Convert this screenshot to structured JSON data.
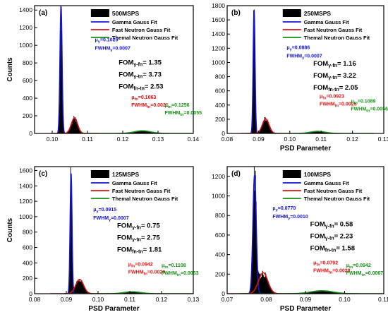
{
  "colors": {
    "histogram": "#000000",
    "gamma_fit": "#1414d8",
    "fast_fit": "#e01010",
    "thermal_fit": "#149014",
    "fom_text": "#000000"
  },
  "legend_labels": [
    "Gamma  Gauss Fit",
    "Fast Neutron Gauss Fit",
    "Themal Neutron Gauss Fit"
  ],
  "chart_data": [
    {
      "id": "a",
      "type": "area",
      "panel_label": "(a)",
      "legend_title": "500MSPS",
      "xlabel": "",
      "ylabel": "Counts",
      "xlim": [
        0.095,
        0.14
      ],
      "ylim": [
        0,
        1450
      ],
      "x_ticks": [
        "0.10",
        "0.11",
        "0.12",
        "0.13",
        "0.14"
      ],
      "x_tick_values": [
        0.1,
        0.11,
        0.12,
        0.13,
        0.14
      ],
      "y_ticks": [
        "0",
        "200",
        "400",
        "600",
        "800",
        "1000",
        "1200",
        "1400"
      ],
      "y_tick_values": [
        0,
        200,
        400,
        600,
        800,
        1000,
        1200,
        1400
      ],
      "peaks": {
        "gamma": {
          "mu": 0.1025,
          "fwhm": 0.0007,
          "height": 1440
        },
        "fast": {
          "mu": 0.1063,
          "fwhm": 0.0021,
          "height": 175
        },
        "thermal": {
          "mu": 0.1256,
          "fwhm": 0.0055,
          "height": 30
        }
      },
      "annotations": {
        "gamma_mu": {
          "sym": "μ",
          "sub": "γ",
          "val": "=0.1025"
        },
        "gamma_fwhm": {
          "sym": "FWHM",
          "sub": "γ",
          "val": "=0.0007"
        },
        "fast_mu": {
          "sym": "μ",
          "sub": "fn",
          "val": "=0.1063"
        },
        "fast_fwhm": {
          "sym": "FWHM",
          "sub": "fn",
          "val": "=0.0021"
        },
        "thermal_mu": {
          "sym": "μ",
          "sub": "tn",
          "val": "=0.1256"
        },
        "thermal_fwhm": {
          "sym": "FWHM",
          "sub": "tn",
          "val": "=0.0055"
        }
      },
      "fom": [
        {
          "sym": "FOM",
          "sub": "γ-fn",
          "val": "= 1.35"
        },
        {
          "sym": "FOM",
          "sub": "γ-tn",
          "val": "= 3.73"
        },
        {
          "sym": "FOM",
          "sub": "fn-tn",
          "val": "= 2.53"
        }
      ]
    },
    {
      "id": "b",
      "type": "area",
      "panel_label": "(b)",
      "legend_title": "250MSPS",
      "xlabel": "PSD Parameter",
      "ylabel": "",
      "xlim": [
        0.08,
        0.13
      ],
      "ylim": [
        0,
        1800
      ],
      "x_ticks": [
        "0.08",
        "0.09",
        "0.10",
        "0.11",
        "0.12",
        "0.13"
      ],
      "x_tick_values": [
        0.08,
        0.09,
        0.1,
        0.11,
        0.12,
        0.13
      ],
      "y_ticks": [
        "0",
        "200",
        "400",
        "600",
        "800",
        "1000",
        "1200",
        "1400",
        "1600",
        "1800"
      ],
      "y_tick_values": [
        0,
        200,
        400,
        600,
        800,
        1000,
        1200,
        1400,
        1600,
        1800
      ],
      "peaks": {
        "gamma": {
          "mu": 0.0886,
          "fwhm": 0.0007,
          "height": 1740
        },
        "fast": {
          "mu": 0.0923,
          "fwhm": 0.0025,
          "height": 205
        },
        "thermal": {
          "mu": 0.1089,
          "fwhm": 0.0056,
          "height": 30
        }
      },
      "annotations": {
        "gamma_mu": {
          "sym": "μ",
          "sub": "γ",
          "val": "=0.0886"
        },
        "gamma_fwhm": {
          "sym": "FWHM",
          "sub": "γ",
          "val": "=0.0007"
        },
        "fast_mu": {
          "sym": "μ",
          "sub": "fn",
          "val": "=0.0923"
        },
        "fast_fwhm": {
          "sym": "FWHM",
          "sub": "fn",
          "val": "=0.0025"
        },
        "thermal_mu": {
          "sym": "μ",
          "sub": "tn",
          "val": "=0.1089"
        },
        "thermal_fwhm": {
          "sym": "FWHM",
          "sub": "tn",
          "val": "=0.0056"
        }
      },
      "fom": [
        {
          "sym": "FOM",
          "sub": "γ-fn",
          "val": "= 1.16"
        },
        {
          "sym": "FOM",
          "sub": "γ-tn",
          "val": "= 3.22"
        },
        {
          "sym": "FOM",
          "sub": "fn-tn",
          "val": "= 2.05"
        }
      ]
    },
    {
      "id": "c",
      "type": "area",
      "panel_label": "(c)",
      "legend_title": "125MSPS",
      "xlabel": "PSD Parameter",
      "ylabel": "Counts",
      "xlim": [
        0.08,
        0.13
      ],
      "ylim": [
        0,
        1650
      ],
      "x_ticks": [
        "0.08",
        "0.09",
        "0.10",
        "0.11",
        "0.12",
        "0.13"
      ],
      "x_tick_values": [
        0.08,
        0.09,
        0.1,
        0.11,
        0.12,
        0.13
      ],
      "y_ticks": [
        "0",
        "200",
        "400",
        "600",
        "800",
        "1000",
        "1200",
        "1400",
        "1600"
      ],
      "y_tick_values": [
        0,
        200,
        400,
        600,
        800,
        1000,
        1200,
        1400,
        1600
      ],
      "peaks": {
        "gamma": {
          "mu": 0.0915,
          "fwhm": 0.0007,
          "height": 1560
        },
        "fast": {
          "mu": 0.0942,
          "fwhm": 0.0029,
          "height": 185
        },
        "thermal": {
          "mu": 0.1108,
          "fwhm": 0.0063,
          "height": 25
        }
      },
      "annotations": {
        "gamma_mu": {
          "sym": "μ",
          "sub": "γ",
          "val": "=0.0915"
        },
        "gamma_fwhm": {
          "sym": "FWHM",
          "sub": "γ",
          "val": "=0.0007"
        },
        "fast_mu": {
          "sym": "μ",
          "sub": "fn",
          "val": "=0.0942"
        },
        "fast_fwhm": {
          "sym": "FWHM",
          "sub": "fn",
          "val": "=0.0029"
        },
        "thermal_mu": {
          "sym": "μ",
          "sub": "tn",
          "val": "=0.1108"
        },
        "thermal_fwhm": {
          "sym": "FWHM",
          "sub": "tn",
          "val": "=0.0063"
        }
      },
      "fom": [
        {
          "sym": "FOM",
          "sub": "γ-fn",
          "val": "= 0.75"
        },
        {
          "sym": "FOM",
          "sub": "γ-tn",
          "val": "= 2.75"
        },
        {
          "sym": "FOM",
          "sub": "fn-tn",
          "val": "= 1.81"
        }
      ]
    },
    {
      "id": "d",
      "type": "area",
      "panel_label": "(d)",
      "legend_title": "100MSPS",
      "xlabel": "PSD Parameter",
      "ylabel": "",
      "xlim": [
        0.07,
        0.11
      ],
      "ylim": [
        0,
        1300
      ],
      "x_ticks": [
        "0.07",
        "0.08",
        "0.09",
        "0.10",
        "0.11"
      ],
      "x_tick_values": [
        0.07,
        0.08,
        0.09,
        0.1,
        0.11
      ],
      "y_ticks": [
        "0",
        "200",
        "400",
        "600",
        "800",
        "1000",
        "1200"
      ],
      "y_tick_values": [
        0,
        200,
        400,
        600,
        800,
        1000,
        1200
      ],
      "peaks": {
        "gamma": {
          "mu": 0.077,
          "fwhm": 0.001,
          "height": 1210
        },
        "fast": {
          "mu": 0.0792,
          "fwhm": 0.0028,
          "height": 215
        },
        "thermal": {
          "mu": 0.0942,
          "fwhm": 0.0067,
          "height": 30
        }
      },
      "annotations": {
        "gamma_mu": {
          "sym": "μ",
          "sub": "γ",
          "val": "=0.0770"
        },
        "gamma_fwhm": {
          "sym": "FWHM",
          "sub": "γ",
          "val": "=0.0010"
        },
        "fast_mu": {
          "sym": "μ",
          "sub": "fn",
          "val": "=0.0792"
        },
        "fast_fwhm": {
          "sym": "FWHM",
          "sub": "fn",
          "val": "=0.0028"
        },
        "thermal_mu": {
          "sym": "μ",
          "sub": "tn",
          "val": "=0.0942"
        },
        "thermal_fwhm": {
          "sym": "FWHM",
          "sub": "tn",
          "val": "=0.0067"
        }
      },
      "fom": [
        {
          "sym": "FOM",
          "sub": "γ-fn",
          "val": "= 0.58"
        },
        {
          "sym": "FOM",
          "sub": "γ-tn",
          "val": "= 2.23"
        },
        {
          "sym": "FOM",
          "sub": "fn-tn",
          "val": "= 1.58"
        }
      ]
    }
  ]
}
